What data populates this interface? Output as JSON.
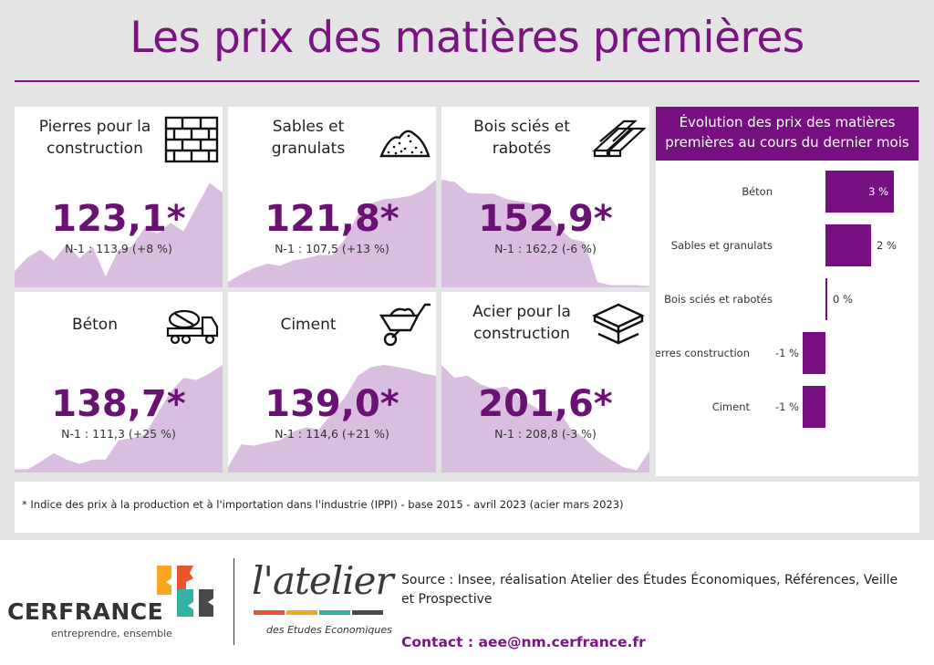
{
  "title": "Les prix des matières premières",
  "colors": {
    "accent": "#7b1483",
    "area": "#d9bedf",
    "bar": "#760f7f"
  },
  "cards": [
    {
      "title": "Pierres pour la construction",
      "icon": "brick-wall-icon",
      "value": "123,1*",
      "previous": "N-1 : 113,9 (+8 %)"
    },
    {
      "title": "Sables et granulats",
      "icon": "sand-pile-icon",
      "value": "121,8*",
      "previous": "N-1 : 107,5 (+13 %)"
    },
    {
      "title": "Bois sciés et rabotés",
      "icon": "wood-planks-icon",
      "value": "152,9*",
      "previous": "N-1 : 162,2 (-6 %)"
    },
    {
      "title": "Béton",
      "icon": "concrete-mixer-truck-icon",
      "value": "138,7*",
      "previous": "N-1 : 111,3 (+25 %)"
    },
    {
      "title": "Ciment",
      "icon": "wheelbarrow-icon",
      "value": "139,0*",
      "previous": "N-1 : 114,6 (+21 %)"
    },
    {
      "title": "Acier pour la construction",
      "icon": "steel-beam-icon",
      "value": "201,6*",
      "previous": "N-1 : 208,8 (-3 %)"
    }
  ],
  "chart_data": [
    {
      "type": "area",
      "name": "Pierres pour la construction",
      "x": [
        1,
        2,
        3,
        4,
        5,
        6,
        7,
        8,
        9,
        10,
        11,
        12,
        13,
        14,
        15,
        16,
        17
      ],
      "values": [
        0.15,
        0.28,
        0.35,
        0.25,
        0.4,
        0.27,
        0.38,
        0.1,
        0.35,
        0.38,
        0.55,
        0.5,
        0.6,
        0.52,
        0.75,
        0.97,
        0.88
      ]
    },
    {
      "type": "area",
      "name": "Sables et granulats",
      "x": [
        1,
        2,
        3,
        4,
        5,
        6,
        7,
        8,
        9,
        10,
        11,
        12,
        13,
        14,
        15,
        16,
        17
      ],
      "values": [
        0.05,
        0.12,
        0.18,
        0.22,
        0.2,
        0.25,
        0.27,
        0.3,
        0.3,
        0.45,
        0.68,
        0.78,
        0.82,
        0.83,
        0.85,
        0.9,
        1.0
      ]
    },
    {
      "type": "area",
      "name": "Bois sciés et rabotés",
      "x": [
        1,
        2,
        3,
        4,
        5,
        6,
        7,
        8,
        9,
        10,
        11,
        12,
        13,
        14,
        15,
        16,
        17
      ],
      "values": [
        1.0,
        0.98,
        0.88,
        0.87,
        0.87,
        0.82,
        0.8,
        0.78,
        0.7,
        0.55,
        0.45,
        0.42,
        0.05,
        0.02,
        0.02,
        0.02,
        0.01
      ]
    },
    {
      "type": "area",
      "name": "Béton",
      "x": [
        1,
        2,
        3,
        4,
        5,
        6,
        7,
        8,
        9,
        10,
        11,
        12,
        13,
        14,
        15,
        16,
        17
      ],
      "values": [
        0.03,
        0.03,
        0.1,
        0.18,
        0.12,
        0.08,
        0.12,
        0.12,
        0.3,
        0.32,
        0.35,
        0.55,
        0.75,
        0.88,
        0.86,
        0.92,
        1.0
      ]
    },
    {
      "type": "area",
      "name": "Ciment",
      "x": [
        1,
        2,
        3,
        4,
        5,
        6,
        7,
        8,
        9,
        10,
        11,
        12,
        13,
        14,
        15,
        16,
        17
      ],
      "values": [
        0.05,
        0.26,
        0.25,
        0.28,
        0.3,
        0.38,
        0.42,
        0.4,
        0.55,
        0.7,
        0.9,
        0.98,
        1.0,
        0.98,
        0.96,
        0.92,
        0.9
      ]
    },
    {
      "type": "area",
      "name": "Acier pour la construction",
      "x": [
        1,
        2,
        3,
        4,
        5,
        6,
        7,
        8,
        9,
        10,
        11,
        12,
        13,
        14,
        15,
        16,
        17
      ],
      "values": [
        1.0,
        0.88,
        0.9,
        0.82,
        0.78,
        0.8,
        0.7,
        0.62,
        0.55,
        0.58,
        0.4,
        0.32,
        0.2,
        0.12,
        0.05,
        0.02,
        0.2
      ]
    },
    {
      "type": "bar",
      "title": "Évolution des prix des matières premières au cours du dernier mois",
      "categories": [
        "Béton",
        "Sables et granulats",
        "Bois sciés et rabotés",
        "Pierres construction",
        "Ciment"
      ],
      "values": [
        3,
        2,
        0,
        -1,
        -1
      ],
      "value_labels": [
        "3 %",
        "2 %",
        "0 %",
        "-1 %",
        "-1 %"
      ]
    }
  ],
  "note": "* Indice des prix à la production et à l'importation dans l'industrie (IPPI) - base 2015 - avril 2023 (acier mars 2023)",
  "footer": {
    "brand": "CERFRANCE",
    "tagline": "entreprendre, ensemble",
    "atelier": "l'atelier",
    "atelier_sub": "des Etudes Economiques",
    "source": "Source : Insee, réalisation Atelier des Études Économiques, Références, Veille et Prospective",
    "contact": "Contact : aee@nm.cerfrance.fr"
  }
}
